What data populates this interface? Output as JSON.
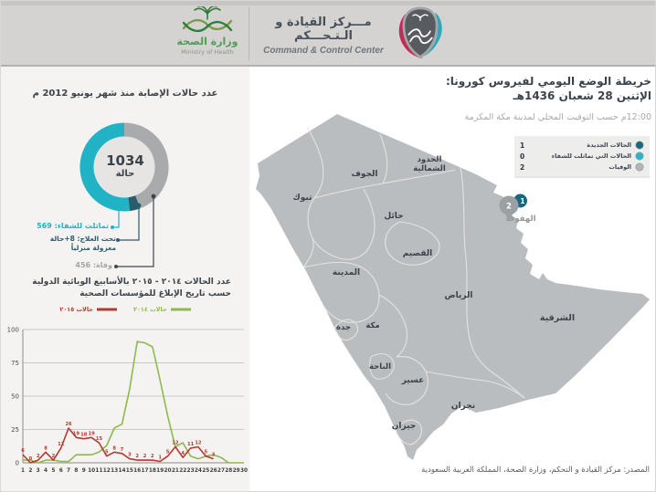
{
  "header": {
    "moh_name_ar": "وزارة الصحة",
    "moh_name_en": "Ministry of Health",
    "ccc_title_ar": "مـــركز القيادة و الـتـحـــكم",
    "ccc_title_en": "Command & Control Center"
  },
  "cases_panel": {
    "title": "عدد حالات الإصابة منذ شهر يونيو 2012 م",
    "total": "1034",
    "unit": "حالة",
    "recovered_label": "تماثلت للشفاء: 569",
    "treatment_label": "تحت العلاج: 8+حالة",
    "treatment_label2": "معزولة منزلياً",
    "deaths_label": "وفاة: 456",
    "values": {
      "recovered": 569,
      "treatment": 9,
      "deaths": 456
    },
    "colors": {
      "recovered": "#21b2c5",
      "treatment": "#2b5c6d",
      "deaths": "#a8aaac"
    }
  },
  "chart_section": {
    "title_line1": "عدد الحالات ٢٠١٤ - ٢٠١٥ بالأسابيع الوبائية الدولية",
    "title_line2": "حسب تاريخ الإبلاغ للمؤسسات الصحية"
  },
  "chart_data": {
    "type": "line",
    "title_line1": "عدد الحالات ٢٠١٤ - ٢٠١٥ بالأسابيع الوبائية الدولية",
    "title_line2": "حسب تاريخ الإبلاغ للمؤسسات الصحية",
    "xlabel": "",
    "ylabel": "",
    "ylim": [
      0,
      100
    ],
    "yticks": [
      0,
      25,
      50,
      75,
      100
    ],
    "x_ticks": [
      1,
      2,
      3,
      4,
      5,
      6,
      7,
      8,
      9,
      10,
      11,
      12,
      13,
      14,
      15,
      16,
      17,
      18,
      19,
      20,
      21,
      22,
      23,
      24,
      25,
      26,
      27,
      28,
      29,
      30
    ],
    "grid": true,
    "legend_position": "top",
    "series": [
      {
        "name": "حالات ٢٠١٤",
        "color": "#8eb94b",
        "point_labels": false,
        "values": [
          2,
          2,
          0,
          2,
          2,
          1,
          1,
          6,
          6,
          6,
          8,
          13,
          26,
          29,
          55,
          91,
          90,
          87,
          62,
          35,
          12,
          15,
          5,
          3,
          5,
          6,
          4,
          0,
          0,
          0
        ]
      },
      {
        "name": "حالات ٢٠١٥",
        "color": "#b23a32",
        "point_labels": true,
        "values": [
          6,
          0,
          2,
          8,
          2,
          11,
          26,
          19,
          18,
          19,
          15,
          5,
          8,
          7,
          3,
          2,
          2,
          2,
          1,
          5,
          12,
          4,
          11,
          12,
          5,
          3
        ]
      }
    ]
  },
  "map_panel": {
    "title_line1": "خريطة الوضع اليومي لفيروس كورونا:",
    "title_line2": "الإثنين 28 شعبان 1436هـ",
    "subtitle": "12:00م حسب التوقيت المحلي لمدينة مكة المكرمة",
    "legend": [
      {
        "label": "الحالات الجديدة",
        "value": "1",
        "color": "#17697c"
      },
      {
        "label": "الحالات التي تماثلت للشفاء",
        "value": "0",
        "color": "#2cb5c8"
      },
      {
        "label": "الوفيات",
        "value": "2",
        "color": "#b2b4b6"
      }
    ],
    "marker": {
      "city": "الهفوف",
      "new_cases": "1",
      "deaths": "2",
      "pin_gray": "#9aa0a4",
      "pin_teal": "#16697e"
    },
    "regions": [
      {
        "name": "الجوف"
      },
      {
        "name": "الحدود",
        "name2": "الشمالية"
      },
      {
        "name": "تبوك"
      },
      {
        "name": "حائل"
      },
      {
        "name": "القصيم"
      },
      {
        "name": "المدينة"
      },
      {
        "name": "الرياض"
      },
      {
        "name": "جدة"
      },
      {
        "name": "مكة"
      },
      {
        "name": "الباحة"
      },
      {
        "name": "عسير"
      },
      {
        "name": "نجران"
      },
      {
        "name": "جيزان"
      },
      {
        "name": "الشرقية"
      }
    ],
    "source": "المصدر: مركز القيادة و التحكم، وزارة الصحة، المملكة العربية السعودية"
  }
}
